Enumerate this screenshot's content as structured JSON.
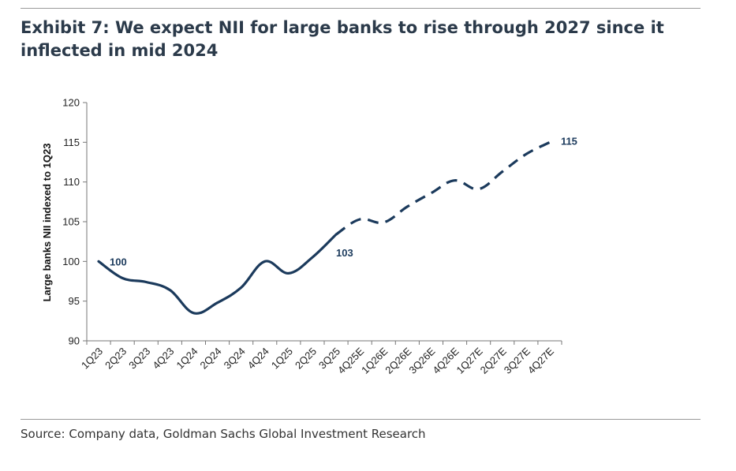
{
  "title": "Exhibit 7: We expect NII for large banks to rise through 2027 since it inflected in mid 2024",
  "source": "Source: Company data, Goldman Sachs Global Investment Research",
  "colors": {
    "series": "#1b3a5c",
    "axis": "#777777",
    "text": "#2b3a4a"
  },
  "chart_data": {
    "type": "line",
    "title": "Exhibit 7: We expect NII for large banks to rise through 2027 since it inflected in mid 2024",
    "xlabel": "",
    "ylabel": "Large banks NII indexed to 1Q23",
    "ylim": [
      90,
      120
    ],
    "yticks": [
      90,
      95,
      100,
      105,
      110,
      115,
      120
    ],
    "grid": false,
    "legend": "none",
    "categories": [
      "1Q23",
      "2Q23",
      "3Q23",
      "4Q23",
      "1Q24",
      "2Q24",
      "3Q24",
      "4Q24",
      "1Q25",
      "2Q25",
      "3Q25",
      "4Q25E",
      "1Q26E",
      "2Q26E",
      "3Q26E",
      "4Q26E",
      "1Q27E",
      "2Q27E",
      "3Q27E",
      "4Q27E"
    ],
    "series": [
      {
        "style": "solid",
        "x": [
          "1Q23",
          "2Q23",
          "3Q23",
          "4Q23",
          "1Q24",
          "2Q24",
          "3Q24",
          "4Q24",
          "1Q25",
          "2Q25",
          "3Q25"
        ],
        "values": [
          100,
          97.9,
          97.4,
          96.4,
          93.5,
          94.8,
          96.7,
          100,
          98.5,
          100.5,
          103.4
        ]
      },
      {
        "style": "dashed",
        "x": [
          "3Q25",
          "4Q25E",
          "1Q26E",
          "2Q26E",
          "3Q26E",
          "4Q26E",
          "1Q27E",
          "2Q27E",
          "3Q27E",
          "4Q27E"
        ],
        "values": [
          103.4,
          105.3,
          104.9,
          106.9,
          108.6,
          110.2,
          109.1,
          111.3,
          113.5,
          115
        ]
      }
    ],
    "data_labels": [
      {
        "text": "100",
        "category": "1Q23",
        "value": 100
      },
      {
        "text": "103",
        "category": "3Q25",
        "value": 103
      },
      {
        "text": "115",
        "category": "4Q27E",
        "value": 115
      }
    ]
  }
}
